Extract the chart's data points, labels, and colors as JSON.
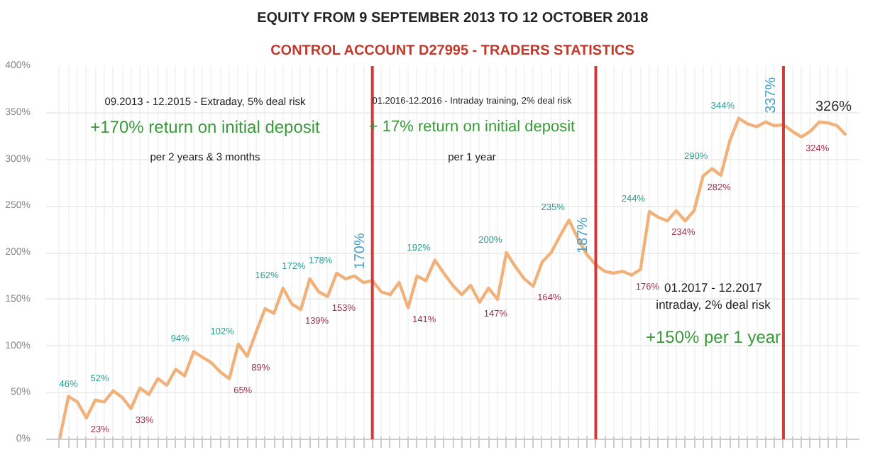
{
  "chart_data": {
    "type": "line",
    "title": "EQUITY FROM 9 SEPTEMBER 2013 TO 12 OCTOBER 2018",
    "subtitle": "CONTROL ACCOUNT D27995 - TRADERS STATISTICS",
    "categories": [
      null,
      null,
      null,
      null,
      null,
      null,
      null,
      null,
      null,
      null,
      null,
      null,
      null,
      null,
      null,
      null,
      null,
      null,
      null,
      null,
      null,
      null,
      null,
      null,
      null,
      null,
      null,
      null,
      null,
      null,
      null,
      null,
      null,
      null,
      null,
      null,
      null,
      null,
      null,
      null,
      null,
      null,
      null,
      null,
      null,
      null,
      null,
      null,
      null,
      null,
      null,
      null,
      null,
      null,
      null,
      null,
      null,
      null,
      null,
      null,
      null,
      null,
      null,
      null,
      null,
      null,
      null,
      null,
      null,
      null,
      null,
      null,
      null,
      null,
      null,
      null,
      null,
      null,
      null,
      null,
      null,
      null,
      null,
      null,
      null,
      null,
      null,
      null,
      null
    ],
    "series": [
      {
        "color": "#f0b27a",
        "values": [
          0,
          46,
          40,
          23,
          42,
          40,
          52,
          45,
          33,
          55,
          48,
          65,
          58,
          75,
          68,
          94,
          88,
          82,
          72,
          65,
          102,
          89,
          115,
          140,
          135,
          162,
          145,
          139,
          172,
          158,
          153,
          178,
          172,
          175,
          168,
          170,
          158,
          155,
          168,
          141,
          175,
          170,
          192,
          178,
          165,
          155,
          165,
          147,
          162,
          150,
          200,
          185,
          172,
          164,
          190,
          200,
          218,
          235,
          215,
          198,
          187,
          180,
          178,
          180,
          176,
          182,
          244,
          238,
          234,
          245,
          234,
          245,
          282,
          290,
          283,
          320,
          344,
          338,
          335,
          340,
          336,
          337,
          330,
          324,
          330,
          340,
          339,
          336,
          326
        ],
        "value_labels": [
          null,
          "46%",
          null,
          "23%",
          null,
          null,
          "52%",
          null,
          "33%",
          null,
          null,
          null,
          null,
          null,
          null,
          "94%",
          null,
          null,
          null,
          "65%",
          "102%",
          "89%",
          null,
          null,
          null,
          "162%",
          null,
          "139%",
          "172%",
          null,
          "153%",
          "178%",
          null,
          null,
          null,
          "170%",
          null,
          null,
          null,
          "141%",
          null,
          null,
          "192%",
          null,
          null,
          null,
          null,
          "147%",
          null,
          null,
          "200%",
          null,
          null,
          "164%",
          null,
          null,
          null,
          "235%",
          null,
          null,
          "187%",
          null,
          null,
          null,
          "176%",
          null,
          "244%",
          null,
          "234%",
          null,
          null,
          null,
          "282%",
          "290%",
          null,
          null,
          "344%",
          null,
          null,
          null,
          null,
          "337%",
          null,
          "324%",
          null,
          null,
          null,
          null,
          "326%"
        ]
      }
    ],
    "ylim": [
      0,
      400
    ],
    "yticks": [
      {
        "value": 0,
        "label": "0%"
      },
      {
        "value": 50,
        "label": "50%"
      },
      {
        "value": 100,
        "label": "100%"
      },
      {
        "value": 150,
        "label": "150%"
      },
      {
        "value": 200,
        "label": "200%"
      },
      {
        "value": 250,
        "label": "250%"
      },
      {
        "value": 300,
        "label": "300%"
      },
      {
        "value": 350,
        "label": "350%"
      },
      {
        "value": 400,
        "label": "400%"
      }
    ],
    "grid": true,
    "marker": "none",
    "line_style": "solid",
    "annotations": [
      "09.2013 - 12.2015 - Extraday, 5% deal risk",
      "+170% return on initial deposit",
      "per 2 years & 3 months",
      "01.2016-12.2016 - Intraday training, 2% deal risk",
      "+ 17% return on initial deposit",
      "per 1 year",
      "01.2017 - 12.2017",
      "intraday, 2% deal risk",
      "+150% per 1 year"
    ]
  }
}
